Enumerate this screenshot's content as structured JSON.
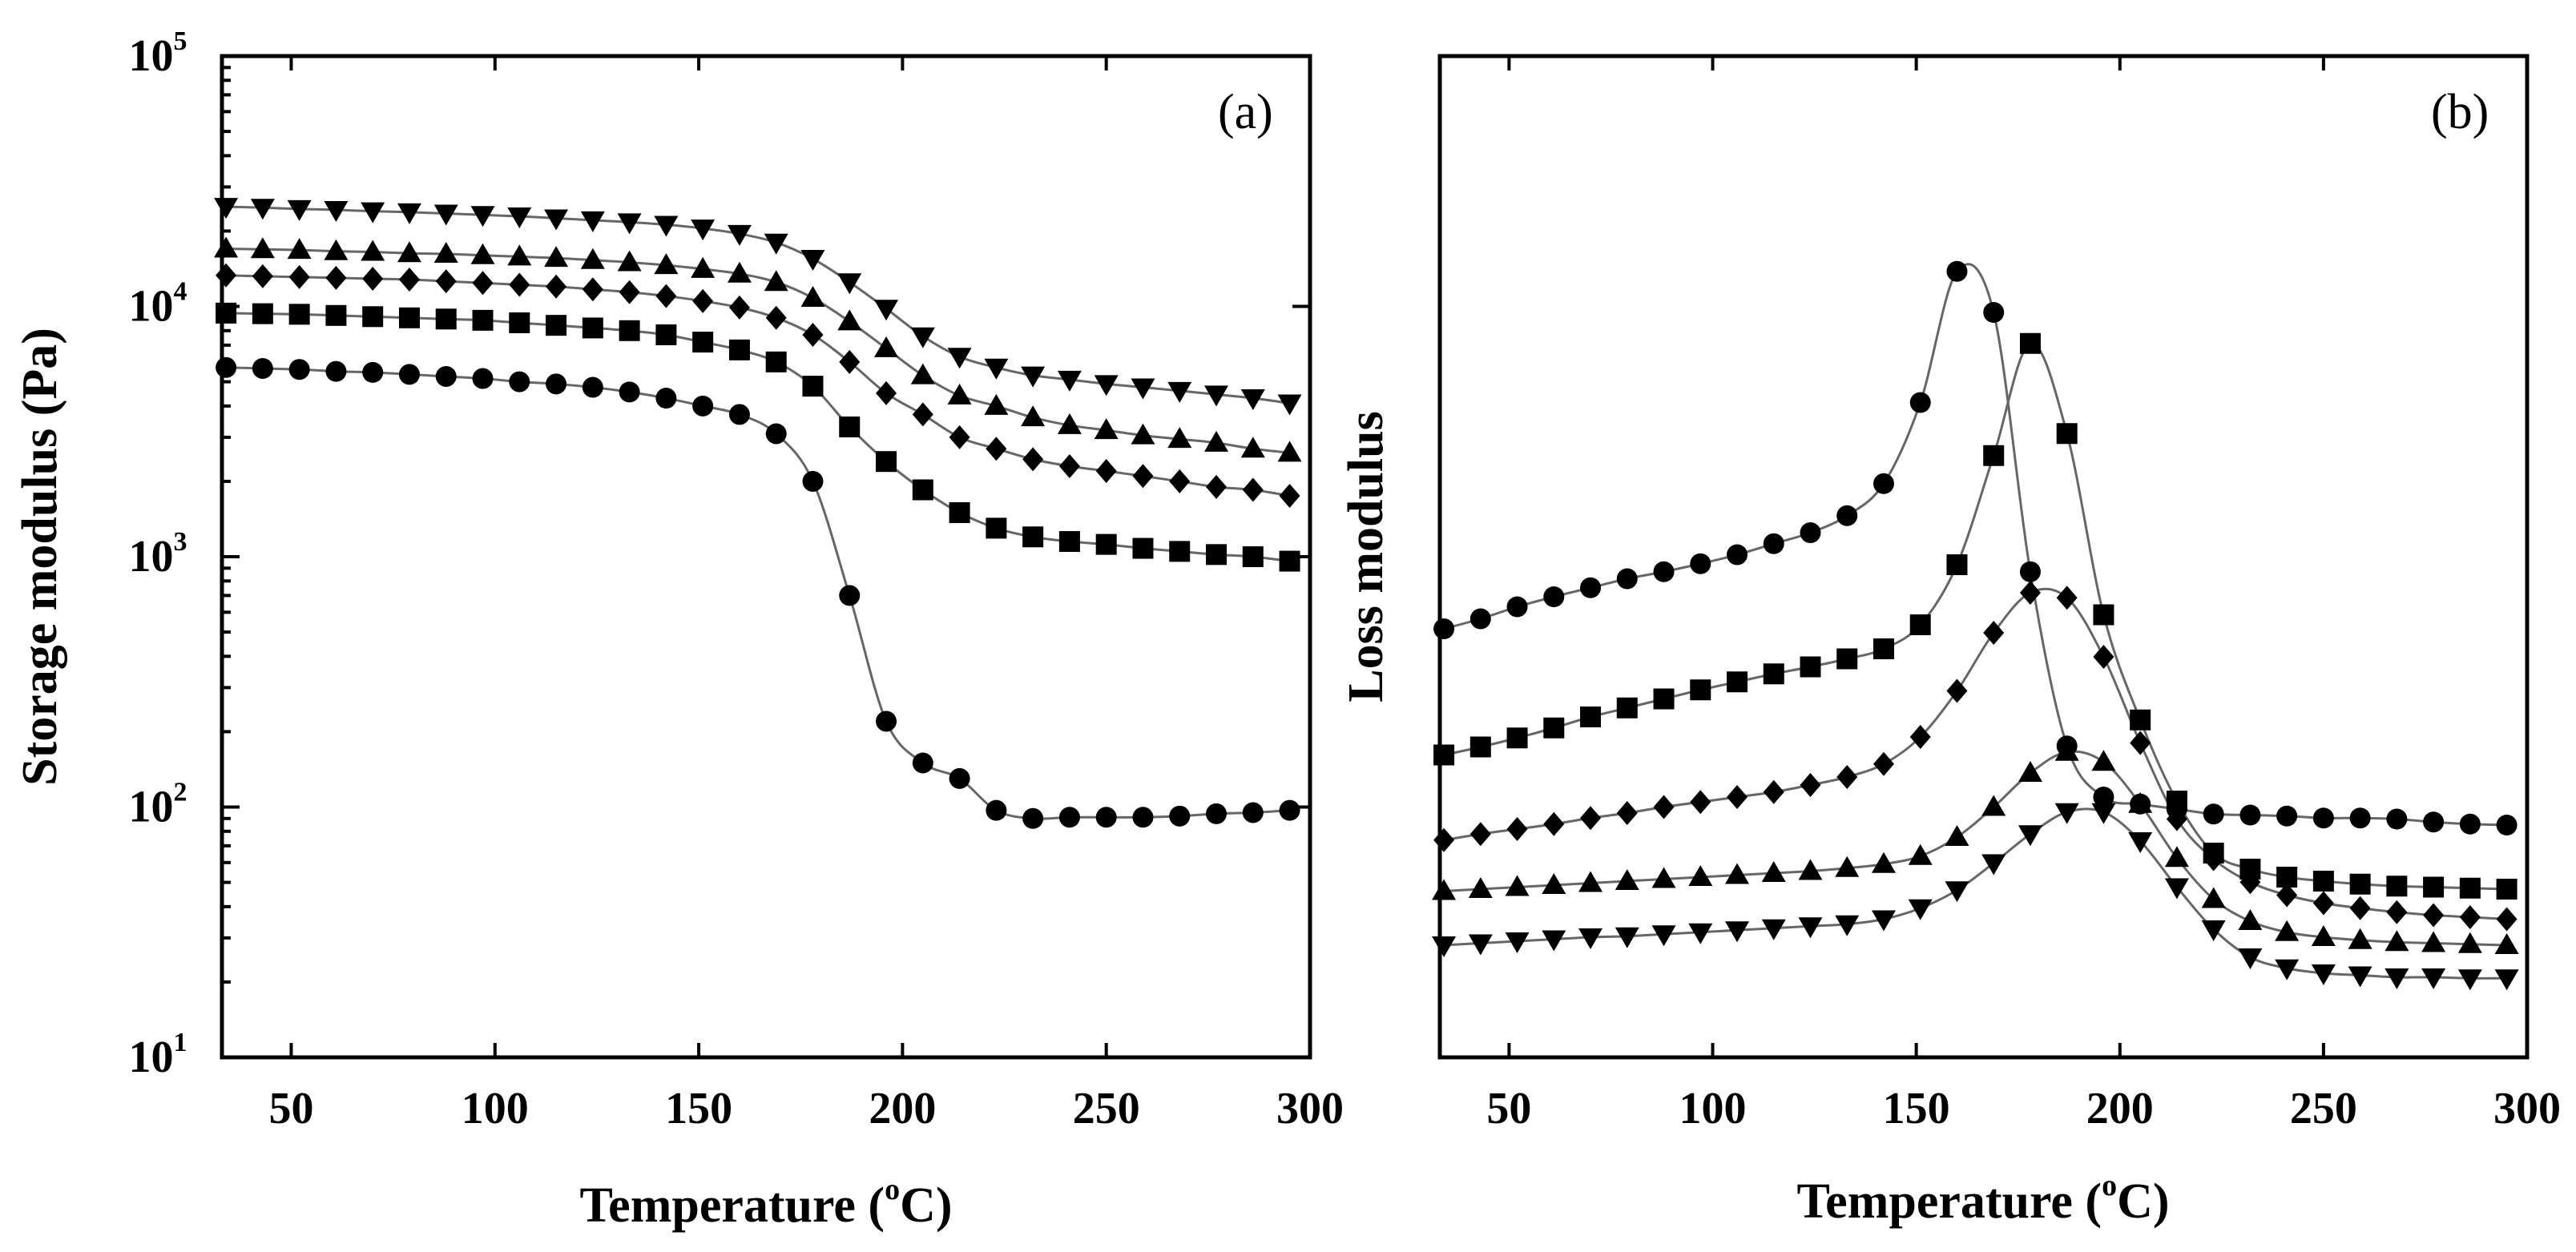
{
  "chart_data": [
    {
      "panel": "(a)",
      "type": "line",
      "marker_style": "filled symbols with thin grey fit curves",
      "xlabel_main": "Temperature (",
      "xlabel_sup": "o",
      "xlabel_end": "C)",
      "ylabel": "Storage modulus (Pa)",
      "yscale": "log",
      "xlim": [
        33,
        300
      ],
      "ylim": [
        10,
        100000
      ],
      "xticks": [
        50,
        100,
        150,
        200,
        250,
        300
      ],
      "xtick_labels": [
        "50",
        "100",
        "150",
        "200",
        "250",
        "300"
      ],
      "yticks": [
        {
          "value": 10,
          "base": "10",
          "exp": "1"
        },
        {
          "value": 100,
          "base": "10",
          "exp": "2"
        },
        {
          "value": 1000,
          "base": "10",
          "exp": "3"
        },
        {
          "value": 10000,
          "base": "10",
          "exp": "4"
        },
        {
          "value": 100000,
          "base": "10",
          "exp": "5"
        }
      ],
      "series": [
        {
          "name": "circle",
          "marker": "circle",
          "x": [
            34,
            43,
            52,
            61,
            70,
            79,
            88,
            97,
            106,
            115,
            124,
            133,
            142,
            151,
            160,
            169,
            178,
            187,
            196,
            205,
            214,
            223,
            232,
            241,
            250,
            259,
            268,
            277,
            286,
            295
          ],
          "y": [
            5700,
            5650,
            5600,
            5500,
            5450,
            5350,
            5250,
            5150,
            5000,
            4900,
            4750,
            4550,
            4300,
            4000,
            3700,
            3100,
            2000,
            700,
            220,
            150,
            130,
            97,
            90,
            91,
            91,
            91,
            92,
            94,
            95,
            97
          ]
        },
        {
          "name": "square",
          "marker": "square",
          "x": [
            34,
            43,
            52,
            61,
            70,
            79,
            88,
            97,
            106,
            115,
            124,
            133,
            142,
            151,
            160,
            169,
            178,
            187,
            196,
            205,
            214,
            223,
            232,
            241,
            250,
            259,
            268,
            277,
            286,
            295
          ],
          "y": [
            9400,
            9350,
            9300,
            9200,
            9100,
            9000,
            8900,
            8800,
            8600,
            8400,
            8200,
            8000,
            7700,
            7200,
            6700,
            6000,
            4800,
            3300,
            2400,
            1850,
            1500,
            1300,
            1200,
            1150,
            1120,
            1080,
            1050,
            1020,
            1000,
            960
          ]
        },
        {
          "name": "diamond",
          "marker": "diamond",
          "x": [
            34,
            43,
            52,
            61,
            70,
            79,
            88,
            97,
            106,
            115,
            124,
            133,
            142,
            151,
            160,
            169,
            178,
            187,
            196,
            205,
            214,
            223,
            232,
            241,
            250,
            259,
            268,
            277,
            286,
            295
          ],
          "y": [
            13300,
            13200,
            13100,
            13000,
            12900,
            12800,
            12600,
            12400,
            12200,
            12000,
            11700,
            11400,
            11000,
            10500,
            9900,
            9000,
            7700,
            6000,
            4500,
            3700,
            3000,
            2700,
            2450,
            2300,
            2200,
            2100,
            2000,
            1900,
            1850,
            1750
          ]
        },
        {
          "name": "triangle-up",
          "marker": "triangle-up",
          "x": [
            34,
            43,
            52,
            61,
            70,
            79,
            88,
            97,
            106,
            115,
            124,
            133,
            142,
            151,
            160,
            169,
            178,
            187,
            196,
            205,
            214,
            223,
            232,
            241,
            250,
            259,
            268,
            277,
            286,
            295
          ],
          "y": [
            17000,
            16900,
            16800,
            16600,
            16500,
            16300,
            16200,
            16000,
            15800,
            15600,
            15300,
            15000,
            14600,
            14100,
            13500,
            12500,
            10800,
            8700,
            6800,
            5300,
            4400,
            4000,
            3600,
            3350,
            3200,
            3050,
            2950,
            2850,
            2700,
            2600
          ]
        },
        {
          "name": "triangle-down",
          "marker": "triangle-down",
          "x": [
            34,
            43,
            52,
            61,
            70,
            79,
            88,
            97,
            106,
            115,
            124,
            133,
            142,
            151,
            160,
            169,
            178,
            187,
            196,
            205,
            214,
            223,
            232,
            241,
            250,
            259,
            268,
            277,
            286,
            295
          ],
          "y": [
            25000,
            24800,
            24500,
            24300,
            24000,
            23800,
            23500,
            23200,
            22900,
            22500,
            22100,
            21700,
            21200,
            20500,
            19500,
            18000,
            15500,
            12500,
            9800,
            7600,
            6300,
            5700,
            5300,
            5100,
            4900,
            4750,
            4600,
            4450,
            4300,
            4100
          ]
        }
      ]
    },
    {
      "panel": "(b)",
      "type": "line",
      "marker_style": "filled symbols with thin grey fit curves",
      "xlabel_main": "Temperature (",
      "xlabel_sup": "o",
      "xlabel_end": "C)",
      "ylabel": "Loss modulus",
      "yscale": "linear (arbitrary, no tick labels)",
      "xlim": [
        33,
        300
      ],
      "ylim": [
        0,
        100
      ],
      "xticks": [
        50,
        100,
        150,
        200,
        250,
        300
      ],
      "xtick_labels": [
        "50",
        "100",
        "150",
        "200",
        "250",
        "300"
      ],
      "series": [
        {
          "name": "circle",
          "marker": "circle",
          "x": [
            34,
            43,
            52,
            61,
            70,
            79,
            88,
            97,
            106,
            115,
            124,
            133,
            142,
            151,
            160,
            169,
            178,
            187,
            196,
            205,
            214,
            223,
            232,
            241,
            250,
            259,
            268,
            277,
            286,
            295
          ],
          "y": [
            42.8,
            43.8,
            45.0,
            46.0,
            46.9,
            47.8,
            48.5,
            49.3,
            50.2,
            51.3,
            52.4,
            54.1,
            57.3,
            65.4,
            78.5,
            74.4,
            48.5,
            31.1,
            26.0,
            25.3,
            24.8,
            24.3,
            24.2,
            24.1,
            23.9,
            23.9,
            23.8,
            23.5,
            23.3,
            23.2
          ]
        },
        {
          "name": "square",
          "marker": "square",
          "x": [
            34,
            43,
            52,
            61,
            70,
            79,
            88,
            97,
            106,
            115,
            124,
            133,
            142,
            151,
            160,
            169,
            178,
            187,
            196,
            205,
            214,
            223,
            232,
            241,
            250,
            259,
            268,
            277,
            286,
            295
          ],
          "y": [
            30.2,
            31.0,
            31.9,
            32.9,
            34.0,
            34.9,
            35.8,
            36.7,
            37.5,
            38.3,
            39.0,
            39.8,
            40.8,
            43.2,
            49.2,
            60.1,
            71.3,
            62.3,
            44.2,
            33.7,
            25.6,
            20.4,
            18.8,
            18.0,
            17.6,
            17.3,
            17.1,
            17.0,
            16.9,
            16.8
          ]
        },
        {
          "name": "diamond",
          "marker": "diamond",
          "x": [
            34,
            43,
            52,
            61,
            70,
            79,
            88,
            97,
            106,
            115,
            124,
            133,
            142,
            151,
            160,
            169,
            178,
            187,
            196,
            205,
            214,
            223,
            232,
            241,
            250,
            259,
            268,
            277,
            286,
            295
          ],
          "y": [
            21.7,
            22.3,
            22.8,
            23.3,
            23.9,
            24.4,
            25.0,
            25.5,
            26.0,
            26.5,
            27.2,
            28.0,
            29.3,
            32.0,
            36.6,
            42.4,
            46.4,
            45.9,
            40.0,
            31.4,
            23.8,
            19.8,
            17.5,
            16.2,
            15.4,
            14.9,
            14.5,
            14.2,
            14.0,
            13.8
          ]
        },
        {
          "name": "triangle-up",
          "marker": "triangle-up",
          "x": [
            34,
            43,
            52,
            61,
            70,
            79,
            88,
            97,
            106,
            115,
            124,
            133,
            142,
            151,
            160,
            169,
            178,
            187,
            196,
            205,
            214,
            223,
            232,
            241,
            250,
            259,
            268,
            277,
            286,
            295
          ],
          "y": [
            16.6,
            16.8,
            17.0,
            17.2,
            17.4,
            17.6,
            17.8,
            18.0,
            18.2,
            18.4,
            18.6,
            18.9,
            19.3,
            20.1,
            22.0,
            25.0,
            28.4,
            30.5,
            29.5,
            25.3,
            19.9,
            15.8,
            13.6,
            12.5,
            12.0,
            11.7,
            11.5,
            11.4,
            11.3,
            11.2
          ]
        },
        {
          "name": "triangle-down",
          "marker": "triangle-down",
          "x": [
            34,
            43,
            52,
            61,
            70,
            79,
            88,
            97,
            106,
            115,
            124,
            133,
            142,
            151,
            160,
            169,
            178,
            187,
            196,
            205,
            214,
            223,
            232,
            241,
            250,
            259,
            268,
            277,
            286,
            295
          ],
          "y": [
            11.2,
            11.4,
            11.6,
            11.8,
            12.0,
            12.1,
            12.3,
            12.5,
            12.7,
            12.9,
            13.1,
            13.3,
            13.8,
            14.9,
            16.7,
            19.4,
            22.3,
            24.5,
            24.5,
            21.6,
            17.0,
            12.8,
            10.0,
            8.9,
            8.4,
            8.2,
            8.0,
            8.0,
            7.9,
            7.9
          ]
        }
      ]
    }
  ]
}
